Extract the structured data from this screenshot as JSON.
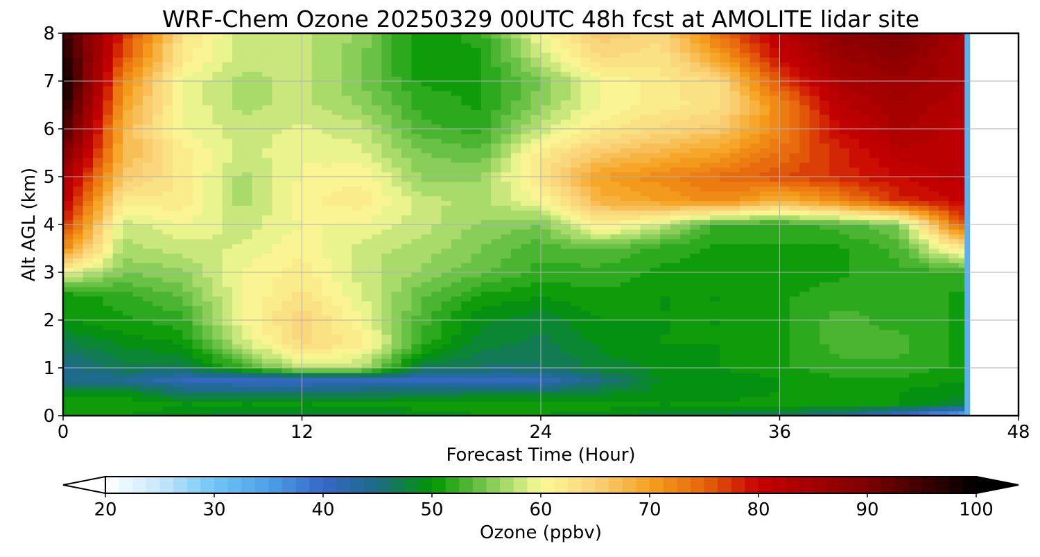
{
  "chart_data": {
    "type": "heatmap",
    "title": "WRF-Chem Ozone  20250329 00UTC 48h fcst at AMOLITE lidar site",
    "xlabel": "Forecast Time (Hour)",
    "ylabel": "Alt AGL (km)",
    "xlim": [
      0,
      48
    ],
    "ylim": [
      0,
      8
    ],
    "xticks": [
      0,
      12,
      24,
      36,
      48
    ],
    "yticks": [
      0,
      1,
      2,
      3,
      4,
      5,
      6,
      7,
      8
    ],
    "grid": true,
    "data_end_hour": 45.5,
    "colorbar": {
      "label": "Ozone  (ppbv)",
      "min": 20,
      "max": 100,
      "ticks": [
        20,
        30,
        40,
        50,
        60,
        70,
        80,
        90,
        100
      ],
      "extend": "both",
      "stops": [
        {
          "v": 20,
          "c": "#ffffff"
        },
        {
          "v": 25,
          "c": "#c6e8fa"
        },
        {
          "v": 30,
          "c": "#6ec6f5"
        },
        {
          "v": 35,
          "c": "#4da0e8"
        },
        {
          "v": 40,
          "c": "#3568c8"
        },
        {
          "v": 45,
          "c": "#1c6b86"
        },
        {
          "v": 50,
          "c": "#009600"
        },
        {
          "v": 55,
          "c": "#78c850"
        },
        {
          "v": 60,
          "c": "#fafa96"
        },
        {
          "v": 65,
          "c": "#fad278"
        },
        {
          "v": 70,
          "c": "#f5a01e"
        },
        {
          "v": 75,
          "c": "#e6640a"
        },
        {
          "v": 80,
          "c": "#c80000"
        },
        {
          "v": 90,
          "c": "#7d0000"
        },
        {
          "v": 100,
          "c": "#000000"
        }
      ]
    },
    "altitudes_km": [
      0,
      0.25,
      0.5,
      0.75,
      1,
      1.5,
      2,
      2.5,
      3,
      3.5,
      4,
      4.5,
      5,
      5.5,
      6,
      6.5,
      7,
      7.5,
      8
    ],
    "hours": [
      0,
      3,
      6,
      9,
      12,
      15,
      18,
      21,
      24,
      27,
      30,
      33,
      36,
      39,
      42,
      45
    ],
    "ozone_ppbv": [
      [
        50,
        50,
        49,
        48,
        47,
        47,
        49,
        50,
        50,
        49,
        48,
        47,
        46,
        44,
        40,
        33
      ],
      [
        51,
        51,
        50,
        50,
        50,
        50,
        51,
        51,
        51,
        51,
        50,
        50,
        51,
        51,
        50,
        48
      ],
      [
        49,
        49,
        46,
        46,
        46,
        46,
        46,
        47,
        47,
        48,
        49,
        49,
        50,
        50,
        50,
        49
      ],
      [
        44,
        44,
        41,
        40,
        40,
        41,
        41,
        41,
        41,
        45,
        49,
        49,
        50,
        51,
        51,
        50
      ],
      [
        44,
        47,
        47,
        52,
        58,
        57,
        47,
        46,
        46,
        48,
        49,
        50,
        51,
        52,
        52,
        51
      ],
      [
        47,
        49,
        50,
        58,
        64,
        62,
        52,
        48,
        47,
        49,
        50,
        50,
        51,
        53,
        53,
        51
      ],
      [
        50,
        51,
        52,
        60,
        65,
        60,
        53,
        49,
        48,
        50,
        50,
        50,
        51,
        53,
        52,
        51
      ],
      [
        50,
        52,
        54,
        60,
        63,
        59,
        54,
        51,
        50,
        51,
        50,
        50,
        51,
        52,
        52,
        51
      ],
      [
        60,
        55,
        56,
        60,
        62,
        58,
        56,
        54,
        52,
        52,
        51,
        50,
        50,
        51,
        52,
        52
      ],
      [
        72,
        57,
        58,
        59,
        61,
        58,
        57,
        55,
        53,
        54,
        52,
        51,
        51,
        51,
        53,
        62
      ],
      [
        78,
        58,
        60,
        58,
        60,
        60,
        58,
        56,
        55,
        62,
        58,
        52,
        52,
        53,
        55,
        75
      ],
      [
        82,
        62,
        62,
        57,
        61,
        62,
        58,
        57,
        60,
        68,
        70,
        72,
        68,
        72,
        78,
        80
      ],
      [
        85,
        66,
        62,
        57,
        60,
        61,
        56,
        56,
        63,
        70,
        72,
        74,
        76,
        78,
        80,
        82
      ],
      [
        90,
        68,
        62,
        58,
        60,
        59,
        55,
        54,
        62,
        66,
        68,
        70,
        74,
        78,
        82,
        82
      ],
      [
        95,
        68,
        60,
        58,
        59,
        58,
        53,
        52,
        58,
        62,
        64,
        66,
        72,
        80,
        84,
        82
      ],
      [
        98,
        70,
        60,
        57,
        58,
        56,
        52,
        51,
        56,
        60,
        62,
        63,
        72,
        82,
        85,
        83
      ],
      [
        100,
        72,
        60,
        57,
        58,
        55,
        51,
        51,
        55,
        60,
        62,
        64,
        76,
        84,
        86,
        84
      ],
      [
        98,
        76,
        62,
        58,
        58,
        55,
        50,
        51,
        58,
        64,
        63,
        70,
        80,
        86,
        88,
        84
      ],
      [
        96,
        78,
        63,
        58,
        58,
        56,
        50,
        52,
        60,
        66,
        64,
        74,
        82,
        88,
        90,
        85
      ]
    ]
  }
}
